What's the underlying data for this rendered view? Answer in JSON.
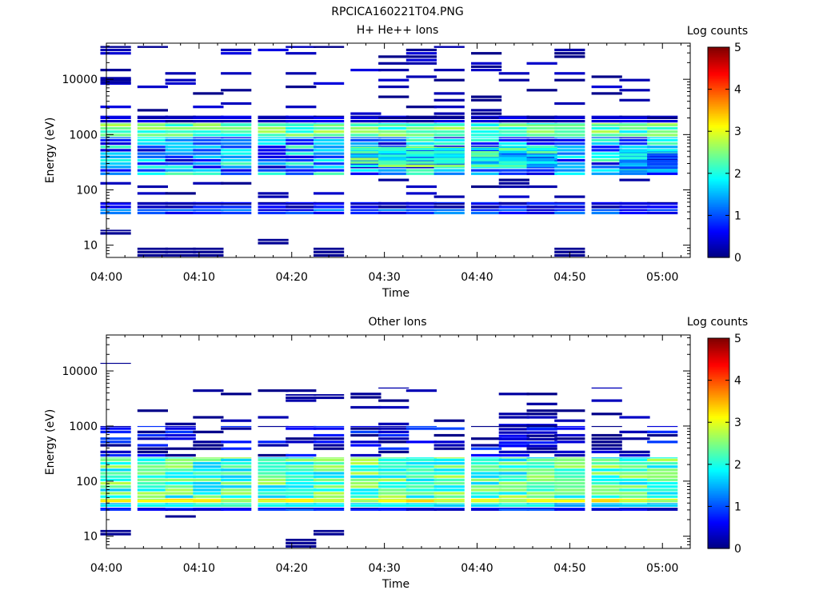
{
  "figure_title": "RPCICA160221T04.PNG",
  "colors": {
    "colormap": [
      "#00007f",
      "#0000ff",
      "#007fff",
      "#00ffff",
      "#7fff7f",
      "#ffff00",
      "#ff7f00",
      "#ff0000",
      "#7f0000"
    ]
  },
  "chart_data": [
    {
      "type": "heatmap",
      "title": "H+ He++ Ions",
      "xlabel": "Time",
      "ylabel": "Energy (eV)",
      "xlim": [
        "04:00",
        "05:03"
      ],
      "ylim": [
        6,
        45000
      ],
      "yscale": "log",
      "x_ticks": [
        "04:00",
        "04:10",
        "04:20",
        "04:30",
        "04:40",
        "04:50",
        "05:00"
      ],
      "y_ticks": [
        "10",
        "100",
        "1000",
        "10000"
      ],
      "colorbar": {
        "label": "Log counts",
        "range": [
          0,
          5
        ],
        "ticks": [
          "0",
          "1",
          "2",
          "3",
          "4",
          "5"
        ]
      },
      "time_bins": [
        "04:01",
        "04:05",
        "04:08",
        "04:11",
        "04:14",
        "04:18",
        "04:21",
        "04:24",
        "04:28",
        "04:31",
        "04:34",
        "04:37",
        "04:41",
        "04:44",
        "04:47",
        "04:50",
        "04:54",
        "04:57",
        "05:00"
      ],
      "cells": [
        {
          "t": [
            0,
            18
          ],
          "e": [
            900,
            1600
          ],
          "v": 2.3,
          "jitter": 0.5
        },
        {
          "t": [
            0,
            18
          ],
          "e": [
            180,
            900
          ],
          "v": 1.3,
          "jitter": 1.0
        },
        {
          "t": [
            0,
            18
          ],
          "e": [
            35,
            45
          ],
          "v": 0.9,
          "jitter": 0.5
        },
        {
          "t": [
            0,
            18
          ],
          "e": [
            45,
            60
          ],
          "v": 0.5,
          "jitter": 0.4
        },
        {
          "t": [
            0,
            18
          ],
          "e": [
            1600,
            2200
          ],
          "v": 0.3,
          "jitter": 0.3
        },
        {
          "t": [
            0,
            17
          ],
          "e": [
            2200,
            40000
          ],
          "v": 0.2,
          "jitter": 0.3,
          "sparse": 0.18
        },
        {
          "t": [
            0,
            17
          ],
          "e": [
            60,
            180
          ],
          "v": 0.2,
          "jitter": 0.2,
          "sparse": 0.15
        },
        {
          "t": [
            0,
            0
          ],
          "e": [
            8000,
            11000
          ],
          "v": 0.2
        },
        {
          "t": [
            0,
            0
          ],
          "e": [
            15,
            19
          ],
          "v": 0.1
        },
        {
          "t": [
            1,
            3
          ],
          "e": [
            6,
            9
          ],
          "v": 0.1
        },
        {
          "t": [
            5,
            5
          ],
          "e": [
            10,
            13
          ],
          "v": 0.1
        },
        {
          "t": [
            7,
            7
          ],
          "e": [
            6,
            9
          ],
          "v": 0.1
        },
        {
          "t": [
            15,
            15
          ],
          "e": [
            6,
            9
          ],
          "v": 0.1
        },
        {
          "t": [
            8,
            11
          ],
          "e": [
            250,
            600
          ],
          "v": 2.2,
          "jitter": 0.6
        },
        {
          "t": [
            12,
            14
          ],
          "e": [
            250,
            600
          ],
          "v": 1.9,
          "jitter": 0.6
        },
        {
          "t": [
            17,
            18
          ],
          "e": [
            200,
            500
          ],
          "v": 1.5,
          "jitter": 0.6
        }
      ]
    },
    {
      "type": "heatmap",
      "title": "Other Ions",
      "xlabel": "Time",
      "ylabel": "Energy (eV)",
      "xlim": [
        "04:00",
        "05:03"
      ],
      "ylim": [
        6,
        45000
      ],
      "yscale": "log",
      "x_ticks": [
        "04:00",
        "04:10",
        "04:20",
        "04:30",
        "04:40",
        "04:50",
        "05:00"
      ],
      "y_ticks": [
        "10",
        "100",
        "1000",
        "10000"
      ],
      "colorbar": {
        "label": "Log counts",
        "range": [
          0,
          5
        ],
        "ticks": [
          "0",
          "1",
          "2",
          "3",
          "4",
          "5"
        ]
      },
      "time_bins": [
        "04:01",
        "04:05",
        "04:08",
        "04:11",
        "04:14",
        "04:18",
        "04:21",
        "04:24",
        "04:28",
        "04:31",
        "04:34",
        "04:37",
        "04:41",
        "04:44",
        "04:47",
        "04:50",
        "04:54",
        "04:57",
        "05:00"
      ],
      "cells": [
        {
          "t": [
            0,
            18
          ],
          "e": [
            40,
            48
          ],
          "v": 3.0,
          "jitter": 0.4
        },
        {
          "t": [
            0,
            18
          ],
          "e": [
            48,
            270
          ],
          "v": 2.2,
          "jitter": 0.6
        },
        {
          "t": [
            0,
            18
          ],
          "e": [
            33,
            40
          ],
          "v": 1.8,
          "jitter": 0.4
        },
        {
          "t": [
            0,
            18
          ],
          "e": [
            28,
            33
          ],
          "v": 0.6,
          "jitter": 0.5
        },
        {
          "t": [
            0,
            18
          ],
          "e": [
            270,
            1000
          ],
          "v": 0.4,
          "jitter": 0.6,
          "sparse": 0.55
        },
        {
          "t": [
            0,
            17
          ],
          "e": [
            1000,
            5000
          ],
          "v": 0.15,
          "jitter": 0.2,
          "sparse": 0.15
        },
        {
          "t": [
            0,
            0
          ],
          "e": [
            13000,
            14000
          ],
          "v": 0.1
        },
        {
          "t": [
            0,
            0
          ],
          "e": [
            10,
            13
          ],
          "v": 0.1
        },
        {
          "t": [
            2,
            2
          ],
          "e": [
            21,
            24
          ],
          "v": 0.1
        },
        {
          "t": [
            6,
            6
          ],
          "e": [
            6,
            9
          ],
          "v": 0.1
        },
        {
          "t": [
            7,
            7
          ],
          "e": [
            10,
            13
          ],
          "v": 0.1
        },
        {
          "t": [
            6,
            7
          ],
          "e": [
            3000,
            3800
          ],
          "v": 0.15
        },
        {
          "t": [
            13,
            14
          ],
          "e": [
            400,
            1100
          ],
          "v": 0.5,
          "jitter": 0.5
        }
      ]
    }
  ]
}
